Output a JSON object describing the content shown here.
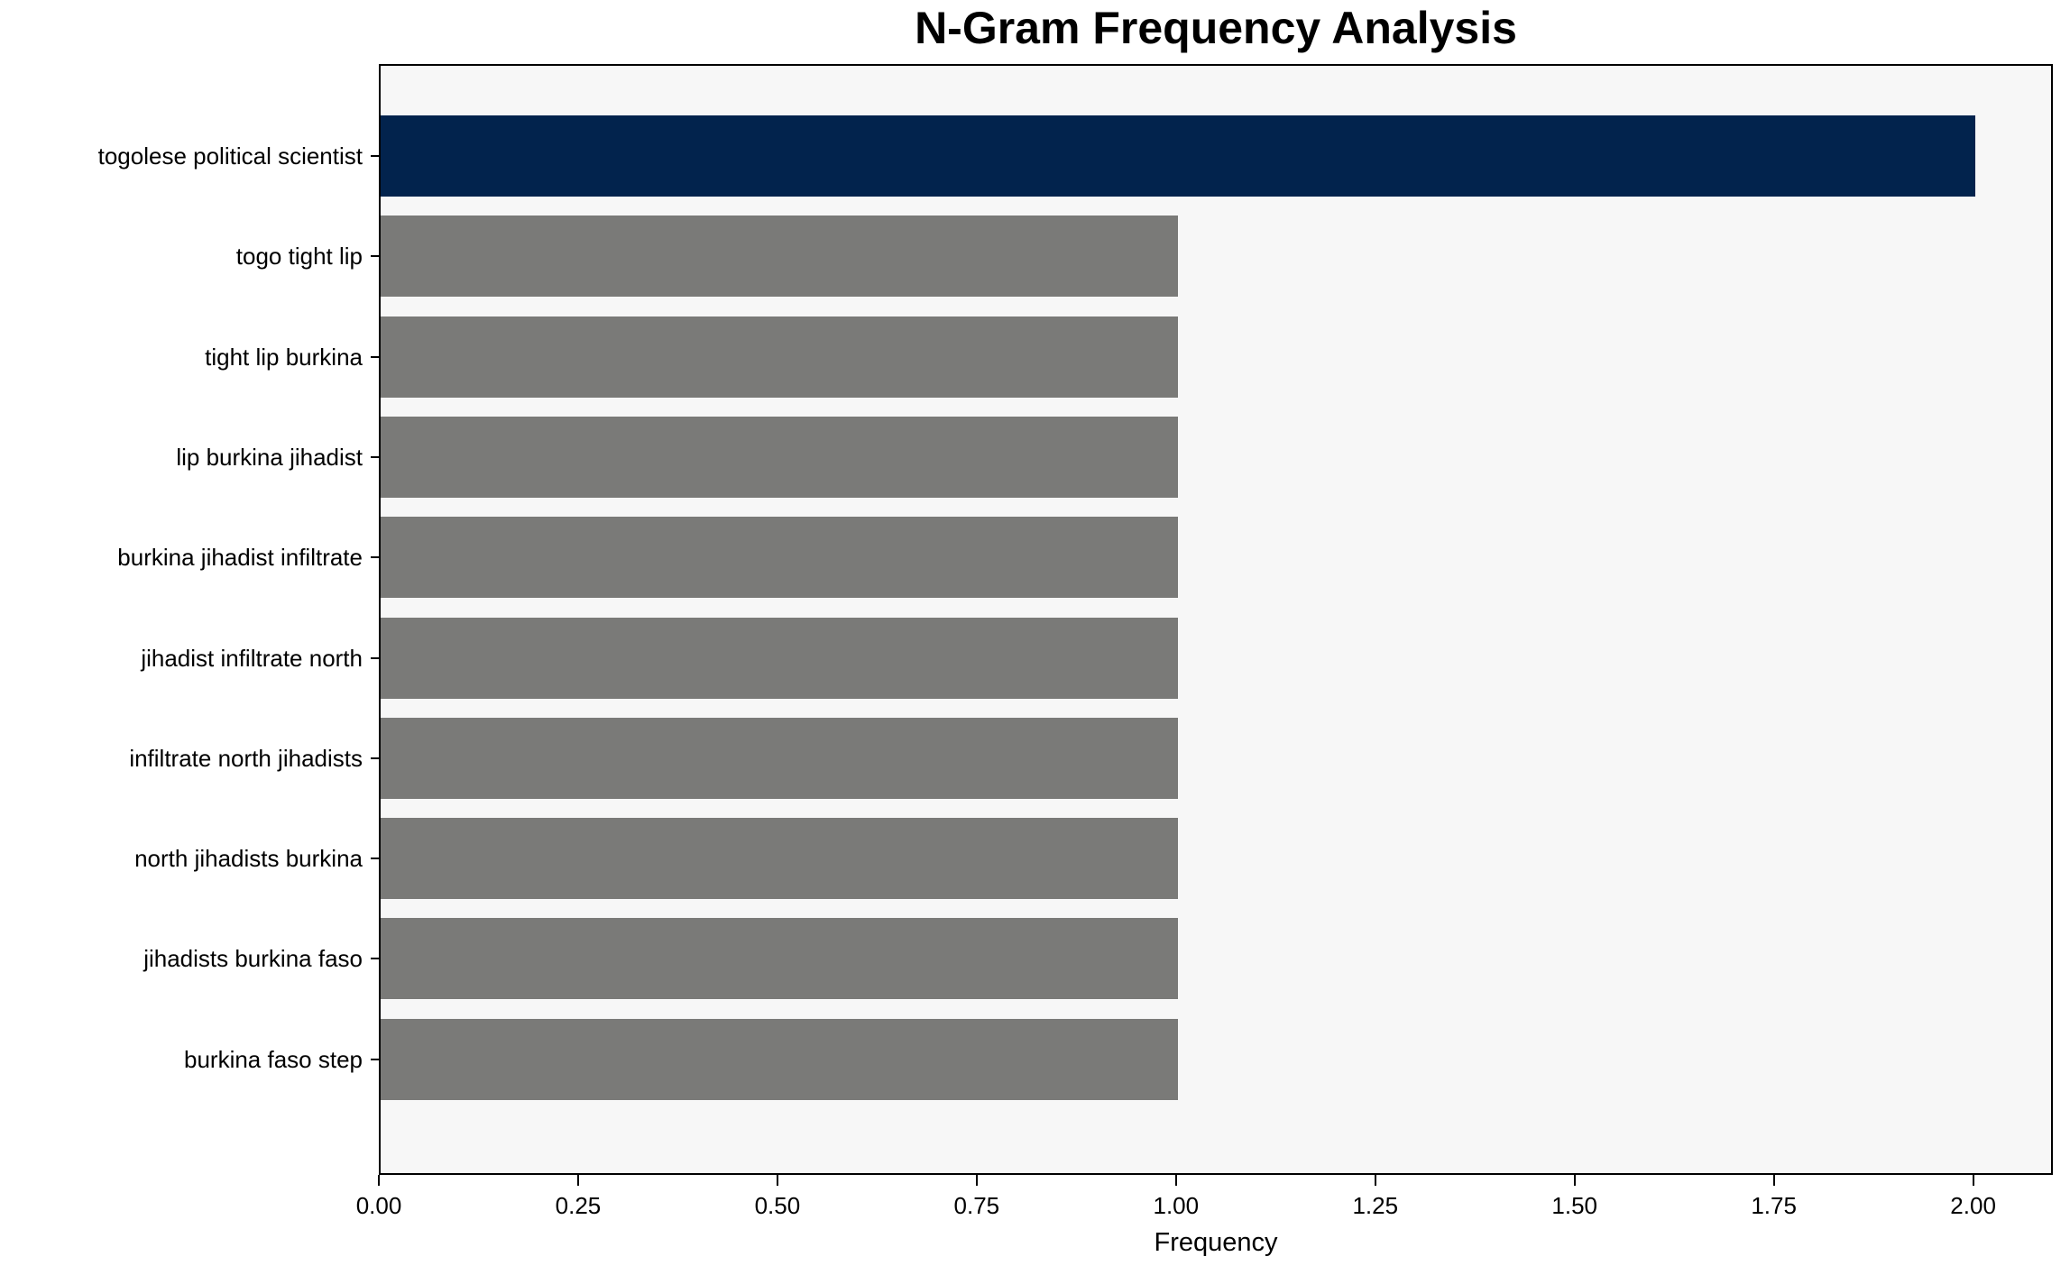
{
  "chart_data": {
    "type": "bar",
    "orientation": "horizontal",
    "title": "N-Gram Frequency Analysis",
    "xlabel": "Frequency",
    "ylabel": "",
    "categories": [
      "togolese political scientist",
      "togo tight lip",
      "tight lip burkina",
      "lip burkina jihadist",
      "burkina jihadist infiltrate",
      "jihadist infiltrate north",
      "infiltrate north jihadists",
      "north jihadists burkina",
      "jihadists burkina faso",
      "burkina faso step"
    ],
    "values": [
      2,
      1,
      1,
      1,
      1,
      1,
      1,
      1,
      1,
      1
    ],
    "highlight_index": 0,
    "xlim": [
      0,
      2.1
    ],
    "x_ticks": [
      0.0,
      0.25,
      0.5,
      0.75,
      1.0,
      1.25,
      1.5,
      1.75,
      2.0
    ],
    "x_tick_labels": [
      "0.00",
      "0.25",
      "0.50",
      "0.75",
      "1.00",
      "1.25",
      "1.50",
      "1.75",
      "2.00"
    ],
    "grid": false,
    "legend_position": "none",
    "colors": {
      "highlight_bar": "#02234d",
      "default_bar": "#7a7a78",
      "plot_background": "#f7f7f7",
      "figure_background": "#ffffff",
      "axis": "#000000",
      "text": "#000000"
    }
  }
}
